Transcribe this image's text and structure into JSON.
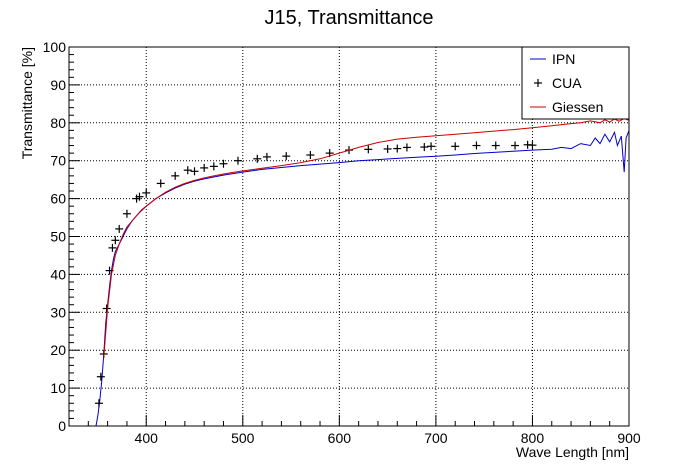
{
  "chart_data": {
    "type": "line",
    "title": "J15, Transmittance",
    "xlabel": "Wave Length [nm]",
    "ylabel": "Transmittance [%]",
    "xlim": [
      320,
      900
    ],
    "ylim": [
      0,
      100
    ],
    "xticks": [
      400,
      500,
      600,
      700,
      800,
      900
    ],
    "yticks": [
      0,
      10,
      20,
      30,
      40,
      50,
      60,
      70,
      80,
      90,
      100
    ],
    "grid": true,
    "legend_position": "top-right",
    "series": [
      {
        "name": "IPN",
        "style": "line",
        "color": "#0000cc",
        "points": [
          [
            348,
            0
          ],
          [
            350,
            3
          ],
          [
            352,
            7
          ],
          [
            354,
            12
          ],
          [
            356,
            19
          ],
          [
            358,
            27
          ],
          [
            360,
            32
          ],
          [
            362,
            37
          ],
          [
            364,
            41
          ],
          [
            366,
            44
          ],
          [
            368,
            46
          ],
          [
            372,
            48
          ],
          [
            376,
            50
          ],
          [
            380,
            52
          ],
          [
            385,
            54
          ],
          [
            390,
            55.5
          ],
          [
            395,
            56.8
          ],
          [
            400,
            58
          ],
          [
            410,
            60
          ],
          [
            420,
            61.5
          ],
          [
            430,
            62.8
          ],
          [
            440,
            63.8
          ],
          [
            450,
            64.6
          ],
          [
            460,
            65.2
          ],
          [
            470,
            65.7
          ],
          [
            480,
            66.2
          ],
          [
            490,
            66.6
          ],
          [
            500,
            67
          ],
          [
            520,
            67.7
          ],
          [
            540,
            68.2
          ],
          [
            560,
            68.7
          ],
          [
            580,
            69.1
          ],
          [
            600,
            69.5
          ],
          [
            620,
            70
          ],
          [
            640,
            70.3
          ],
          [
            660,
            70.6
          ],
          [
            680,
            70.9
          ],
          [
            700,
            71.2
          ],
          [
            720,
            71.5
          ],
          [
            740,
            71.9
          ],
          [
            760,
            72.2
          ],
          [
            780,
            72.5
          ],
          [
            800,
            72.8
          ],
          [
            820,
            73
          ],
          [
            830,
            73.5
          ],
          [
            840,
            73.2
          ],
          [
            850,
            74.5
          ],
          [
            860,
            74
          ],
          [
            865,
            76
          ],
          [
            870,
            74.5
          ],
          [
            875,
            77
          ],
          [
            880,
            75
          ],
          [
            885,
            77.5
          ],
          [
            888,
            74
          ],
          [
            892,
            76.5
          ],
          [
            895,
            67
          ],
          [
            897,
            76
          ],
          [
            900,
            78
          ]
        ]
      },
      {
        "name": "CUA",
        "style": "marker",
        "color": "#000000",
        "points": [
          [
            351,
            6
          ],
          [
            353,
            13
          ],
          [
            356,
            19
          ],
          [
            359,
            31
          ],
          [
            362,
            41
          ],
          [
            365,
            47
          ],
          [
            368,
            49
          ],
          [
            372,
            52
          ],
          [
            380,
            56
          ],
          [
            390,
            60
          ],
          [
            393,
            60.5
          ],
          [
            400,
            61.5
          ],
          [
            415,
            64
          ],
          [
            430,
            66
          ],
          [
            443,
            67.5
          ],
          [
            450,
            67.2
          ],
          [
            460,
            68.1
          ],
          [
            470,
            68.5
          ],
          [
            480,
            69.2
          ],
          [
            495,
            70
          ],
          [
            515,
            70.5
          ],
          [
            525,
            71
          ],
          [
            545,
            71.2
          ],
          [
            570,
            71.5
          ],
          [
            590,
            72
          ],
          [
            610,
            72.8
          ],
          [
            630,
            73
          ],
          [
            650,
            73.1
          ],
          [
            660,
            73.2
          ],
          [
            670,
            73.5
          ],
          [
            688,
            73.6
          ],
          [
            695,
            73.8
          ],
          [
            720,
            73.8
          ],
          [
            742,
            74
          ],
          [
            762,
            74
          ],
          [
            782,
            74
          ],
          [
            795,
            74.2
          ],
          [
            800,
            74.1
          ]
        ]
      },
      {
        "name": "Giessen",
        "style": "line",
        "color": "#cc0000",
        "points": [
          [
            356,
            18
          ],
          [
            360,
            31
          ],
          [
            364,
            40
          ],
          [
            368,
            45
          ],
          [
            372,
            48
          ],
          [
            376,
            50.5
          ],
          [
            380,
            52.5
          ],
          [
            385,
            54
          ],
          [
            390,
            55.5
          ],
          [
            395,
            57
          ],
          [
            400,
            58
          ],
          [
            410,
            60
          ],
          [
            420,
            61.7
          ],
          [
            430,
            63
          ],
          [
            440,
            64
          ],
          [
            450,
            64.8
          ],
          [
            460,
            65.5
          ],
          [
            470,
            66
          ],
          [
            480,
            66.5
          ],
          [
            490,
            66.9
          ],
          [
            500,
            67.3
          ],
          [
            520,
            68
          ],
          [
            540,
            68.7
          ],
          [
            560,
            69.5
          ],
          [
            580,
            70.5
          ],
          [
            600,
            72
          ],
          [
            620,
            73.5
          ],
          [
            640,
            74.8
          ],
          [
            660,
            75.7
          ],
          [
            680,
            76.2
          ],
          [
            700,
            76.6
          ],
          [
            720,
            77
          ],
          [
            740,
            77.4
          ],
          [
            760,
            77.8
          ],
          [
            780,
            78.2
          ],
          [
            800,
            78.7
          ],
          [
            820,
            79.2
          ],
          [
            840,
            79.8
          ],
          [
            850,
            80
          ],
          [
            860,
            80.5
          ],
          [
            870,
            80
          ],
          [
            875,
            80.8
          ],
          [
            880,
            80.2
          ],
          [
            885,
            81
          ],
          [
            890,
            80.4
          ],
          [
            895,
            81.2
          ],
          [
            900,
            80.6
          ]
        ]
      }
    ]
  }
}
